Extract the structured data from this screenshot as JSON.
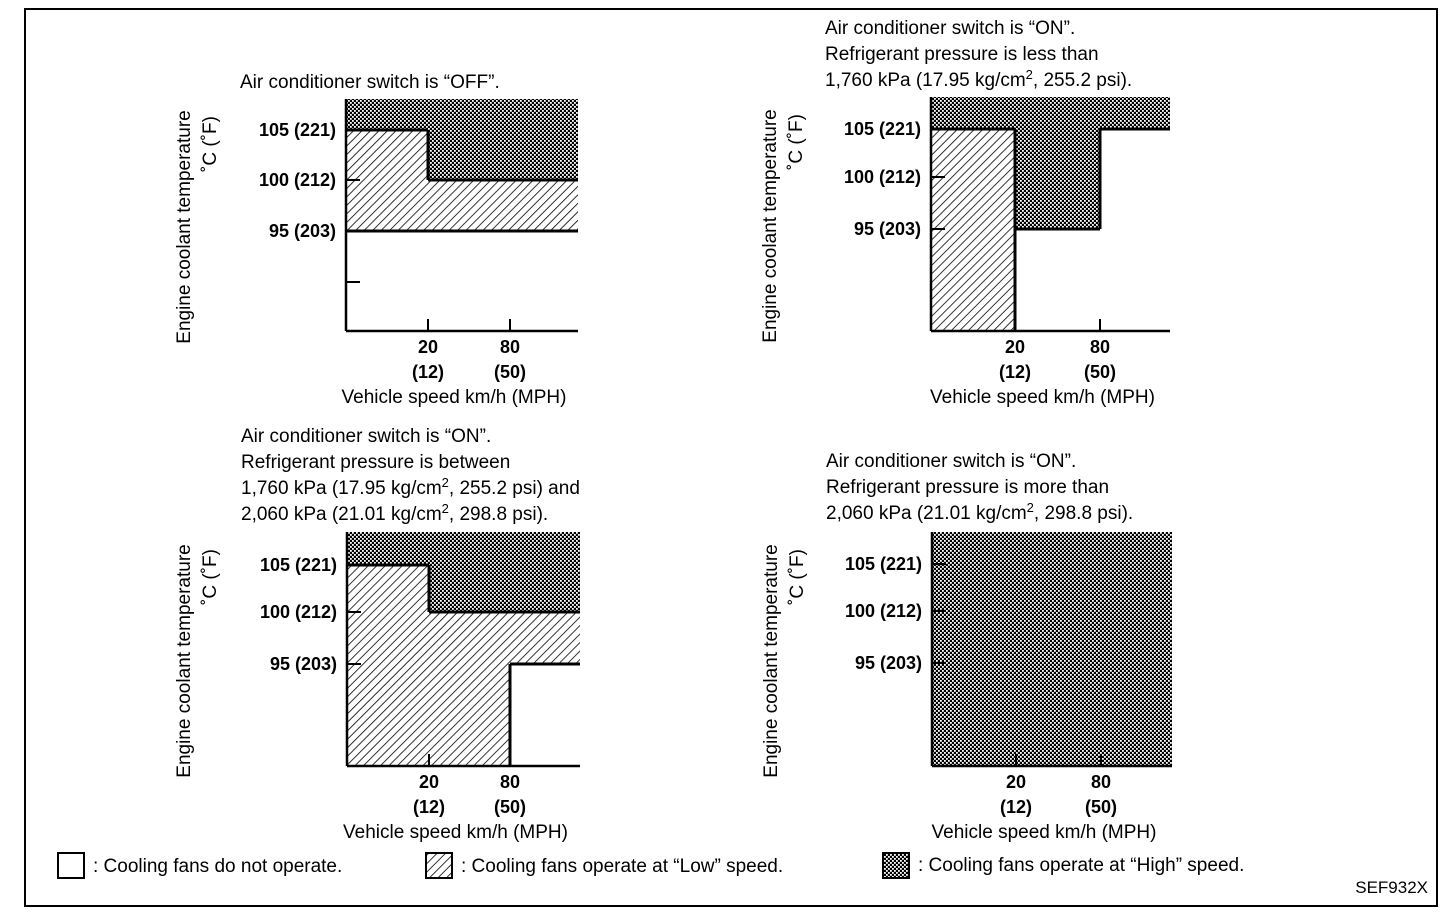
{
  "figure_code": "SEF932X",
  "axis": {
    "y_label": "Engine coolant temperature",
    "y_unit": "˚C (˚F)",
    "x_label": "Vehicle speed km/h (MPH)",
    "y_ticks": [
      "105 (221)",
      "100 (212)",
      "95 (203)"
    ],
    "x_ticks": [
      {
        "top": "20",
        "bottom": "(12)"
      },
      {
        "top": "80",
        "bottom": "(50)"
      }
    ]
  },
  "legend": {
    "off": ": Cooling fans do not operate.",
    "low": ": Cooling fans operate at “Low” speed.",
    "high": ": Cooling fans operate at “High” speed."
  },
  "panels": [
    {
      "caption_lines": [
        {
          "text": "Air conditioner switch is “OFF”."
        }
      ]
    },
    {
      "caption_lines": [
        {
          "text": "Air conditioner switch is “ON”."
        },
        {
          "text": "Refrigerant pressure is less than"
        },
        {
          "text": "1,760 kPa (17.95 kg/cm",
          "sup": "2",
          "after": ", 255.2 psi)."
        }
      ]
    },
    {
      "caption_lines": [
        {
          "text": "Air conditioner switch is “ON”."
        },
        {
          "text": "Refrigerant pressure is between"
        },
        {
          "text": "1,760 kPa (17.95 kg/cm",
          "sup": "2",
          "after": ", 255.2 psi) and"
        },
        {
          "text": "2,060 kPa (21.01 kg/cm",
          "sup": "2",
          "after": ", 298.8 psi)."
        }
      ]
    },
    {
      "caption_lines": [
        {
          "text": "Air conditioner switch is “ON”."
        },
        {
          "text": "Refrigerant pressure is more than"
        },
        {
          "text": "2,060 kPa (21.01 kg/cm",
          "sup": "2",
          "after": ", 298.8 psi)."
        }
      ]
    }
  ]
}
